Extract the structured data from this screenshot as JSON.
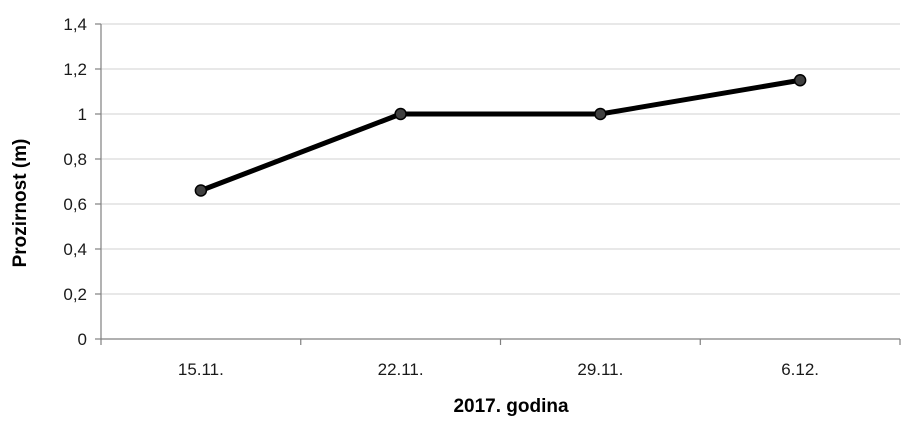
{
  "chart_data": {
    "type": "line",
    "title": "",
    "xlabel": "2017. godina",
    "ylabel": "Prozirnost (m)",
    "categories": [
      "15.11.",
      "22.11.",
      "29.11.",
      "6.12."
    ],
    "y_ticks": [
      "0",
      "0,2",
      "0,4",
      "0,6",
      "0,8",
      "1",
      "1,2",
      "1,4"
    ],
    "ylim": [
      0,
      1.4
    ],
    "y_tick_step": 0.2,
    "grid": true,
    "legend": "none",
    "series": [
      {
        "values": [
          0.66,
          1.0,
          1.0,
          1.15
        ]
      }
    ],
    "colors": {
      "line": "#000000",
      "marker_fill": "#404040",
      "gridline": "#d0d0d0",
      "axis": "#808080"
    }
  }
}
